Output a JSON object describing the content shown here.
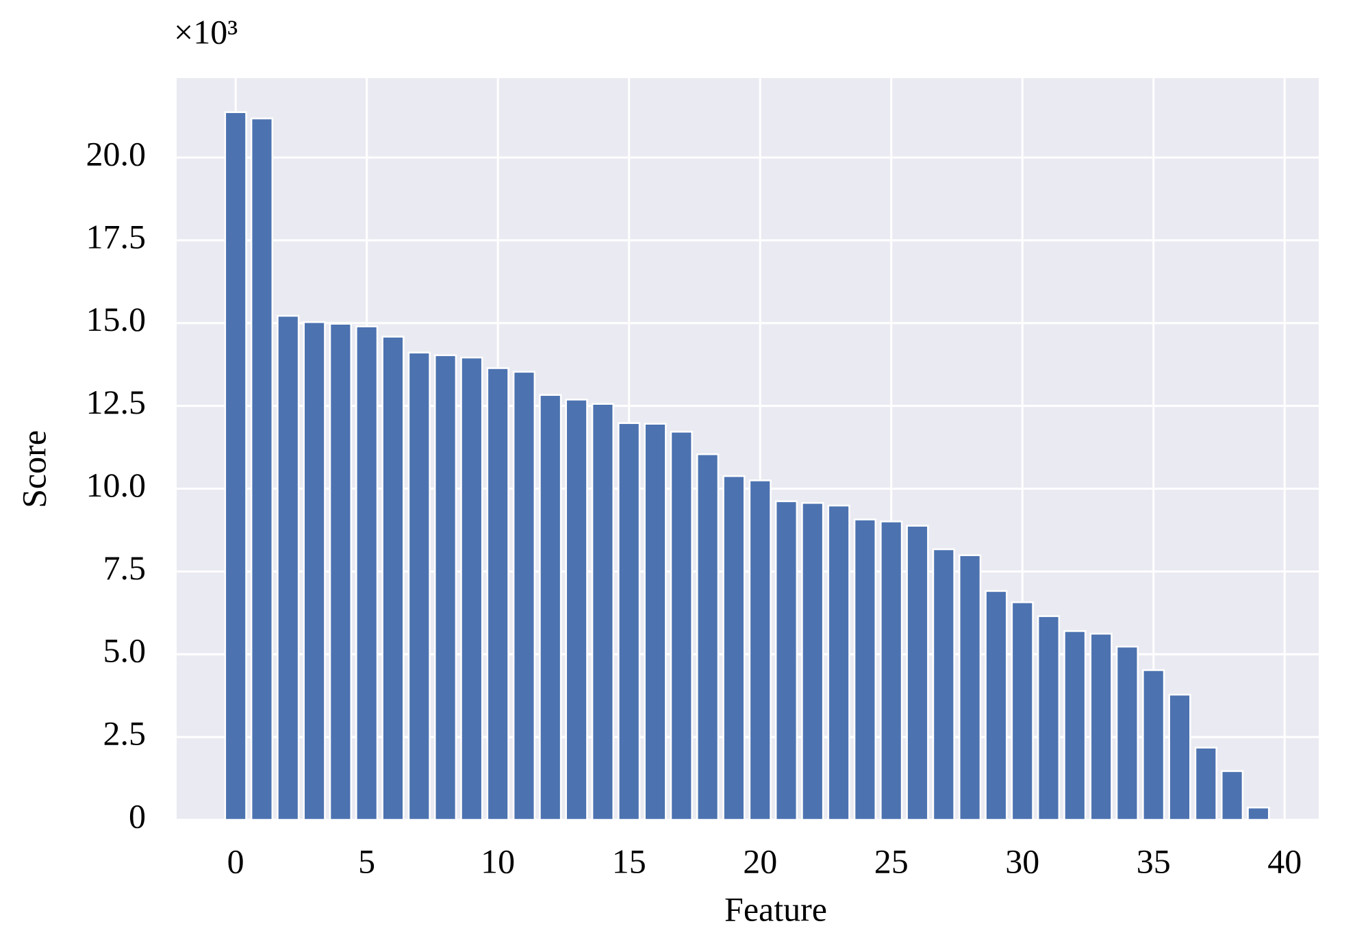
{
  "chart_data": {
    "type": "bar",
    "y_multiplier": "×10³",
    "xlabel": "Feature",
    "ylabel": "Score",
    "x": [
      0,
      1,
      2,
      3,
      4,
      5,
      6,
      7,
      8,
      9,
      10,
      11,
      12,
      13,
      14,
      15,
      16,
      17,
      18,
      19,
      20,
      21,
      22,
      23,
      24,
      25,
      26,
      27,
      28,
      29,
      30,
      31,
      32,
      33,
      34,
      35,
      36,
      37,
      38,
      39
    ],
    "values": [
      21.37,
      21.18,
      15.22,
      15.03,
      14.98,
      14.9,
      14.59,
      14.11,
      14.03,
      13.96,
      13.64,
      13.53,
      12.83,
      12.69,
      12.56,
      11.98,
      11.96,
      11.72,
      11.04,
      10.38,
      10.25,
      9.62,
      9.57,
      9.49,
      9.07,
      9.01,
      8.88,
      8.17,
      7.99,
      6.91,
      6.57,
      6.15,
      5.7,
      5.62,
      5.23,
      4.52,
      3.78,
      2.18,
      1.47,
      0.37
    ],
    "color": "#4c72b0",
    "xlim": [
      -2.25,
      41.3
    ],
    "ylim": [
      0,
      22.4
    ],
    "xticks": [
      0,
      5,
      10,
      15,
      20,
      25,
      30,
      35,
      40
    ],
    "yticks": [
      0,
      2.5,
      {
        "value": 5,
        "label": "5.0"
      },
      7.5,
      {
        "value": 10,
        "label": "10.0"
      },
      12.5,
      {
        "value": 15,
        "label": "15.0"
      },
      17.5,
      {
        "value": 20,
        "label": "20.0"
      }
    ],
    "grid": true,
    "background": "#eaeaf2"
  }
}
